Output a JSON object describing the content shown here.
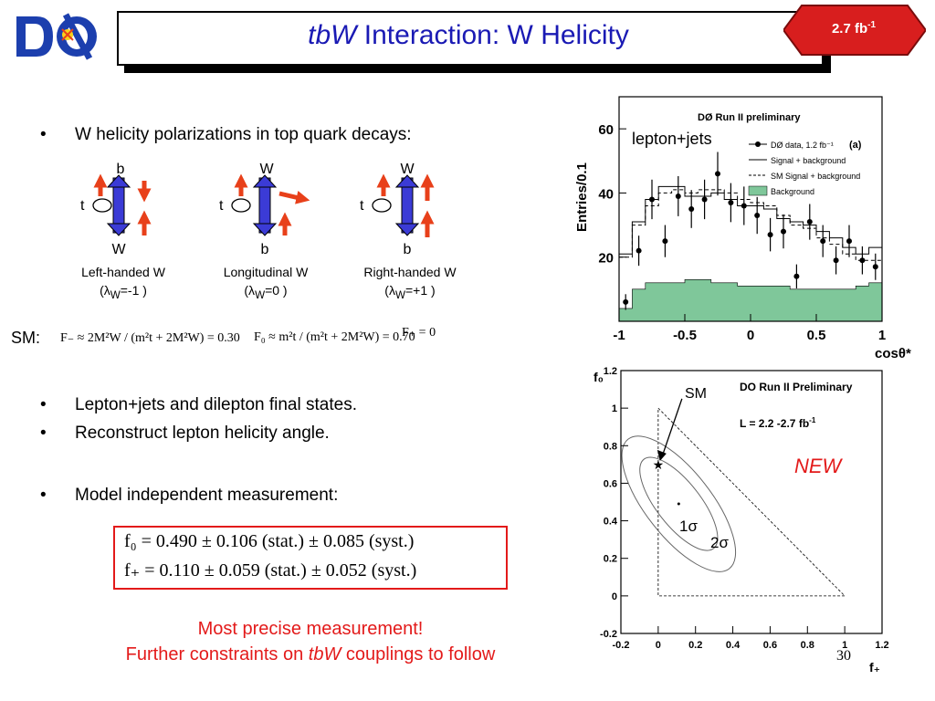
{
  "header": {
    "title_italic": "tbW",
    "title_rest": " Interaction: W Helicity",
    "badge_base": "2.7 fb",
    "badge_sup": "-1"
  },
  "bullets": {
    "b1": "W helicity polarizations in top quark decays:",
    "b2": "Lepton+jets and dilepton final states.",
    "b3": "Reconstruct lepton helicity angle.",
    "b4": "Model independent measurement:"
  },
  "diagrams": [
    {
      "top": "b",
      "bottom": "W",
      "t": "t",
      "name": "Left-handed W",
      "lambda": "=-1 )"
    },
    {
      "top": "W",
      "bottom": "b",
      "t": "t",
      "name": "Longitudinal W",
      "lambda": "=0 )"
    },
    {
      "top": "W",
      "bottom": "b",
      "t": "t",
      "name": "Right-handed W",
      "lambda": "=+1 )"
    }
  ],
  "lambda_prefix": "(λ",
  "lambda_sub": "W",
  "sm_label": "SM:",
  "sm_equations": {
    "e1": "F₋ ≈ 2M²W / (m²t + 2M²W) = 0.30",
    "e2": "F₀ ≈ m²t / (m²t + 2M²W) = 0.70",
    "e3": "F₊ = 0"
  },
  "results": {
    "f0": "f₀  =  0.490 ± 0.106 (stat.) ± 0.085 (syst.)",
    "fplus": "f₊  =  0.110 ± 0.059 (stat.) ± 0.052 (syst.)"
  },
  "footer": {
    "line1": "Most precise measurement!",
    "line2_pre": "Further constraints on ",
    "line2_italic": "tbW",
    "line2_post": " couplings to follow"
  },
  "page_number": "30",
  "colors": {
    "title": "#1a1ab4",
    "accent_red": "#e31a1a",
    "arrow_blue": "#3b3bd6",
    "arrow_red": "#e8401a",
    "background_fill": "#7fc79a"
  },
  "chart_data": [
    {
      "type": "histogram",
      "ylabel": "Entries/0.1",
      "xlabel": "cosθ*",
      "annotation": "lepton+jets",
      "inner_title": "DØ Run II preliminary",
      "panel_tag": "(a)",
      "xlim": [
        -1,
        1
      ],
      "ylim": [
        0,
        70
      ],
      "xticks": [
        "-1",
        "-0.5",
        "0",
        "0.5",
        "1"
      ],
      "yticks": [
        "20",
        "40",
        "60"
      ],
      "legend": [
        "DØ data, 1.2 fb⁻¹",
        "Signal + background",
        "SM Signal + background",
        "Background"
      ],
      "x": [
        -0.95,
        -0.85,
        -0.75,
        -0.65,
        -0.55,
        -0.45,
        -0.35,
        -0.25,
        -0.15,
        -0.05,
        0.05,
        0.15,
        0.25,
        0.35,
        0.45,
        0.55,
        0.65,
        0.75,
        0.85,
        0.95
      ],
      "series": [
        {
          "name": "DØ data, 1.2 fb⁻¹",
          "values": [
            6,
            22,
            38,
            25,
            39,
            35,
            38,
            46,
            37,
            36,
            33,
            27,
            28,
            14,
            31,
            25,
            19,
            25,
            19,
            17
          ]
        },
        {
          "name": "Signal + background",
          "values": [
            21,
            31,
            38,
            42,
            42,
            39,
            39,
            40,
            38,
            36,
            36,
            35,
            32,
            31,
            30,
            28,
            26,
            23,
            21,
            23
          ]
        },
        {
          "name": "SM Signal + background",
          "values": [
            20,
            30,
            36,
            40,
            41,
            40,
            41,
            41,
            40,
            38,
            37,
            36,
            33,
            30,
            29,
            26,
            24,
            21,
            19,
            19
          ]
        },
        {
          "name": "Background",
          "values": [
            4,
            10,
            12,
            12,
            12,
            13,
            13,
            12,
            12,
            11,
            11,
            11,
            11,
            10,
            10,
            10,
            10,
            10,
            11,
            12
          ]
        }
      ]
    },
    {
      "type": "contour",
      "xlabel": "f₊",
      "ylabel": "f₀",
      "title": "DO Run II Preliminary",
      "subtitle": "L = 2.2 -2.7 fb",
      "subtitle_sup": "-1",
      "badge": "NEW",
      "sm_label": "SM",
      "contour_labels": [
        "1σ",
        "2σ"
      ],
      "xlim": [
        -0.2,
        1.2
      ],
      "ylim": [
        -0.2,
        1.2
      ],
      "xticks": [
        "-0.2",
        "0",
        "0.2",
        "0.4",
        "0.6",
        "0.8",
        "1",
        "1.2"
      ],
      "yticks": [
        "-0.2",
        "0",
        "0.2",
        "0.4",
        "0.6",
        "0.8",
        "1",
        "1.2"
      ],
      "sm_point": [
        0,
        0.7
      ],
      "best_fit": [
        0.11,
        0.49
      ]
    }
  ]
}
